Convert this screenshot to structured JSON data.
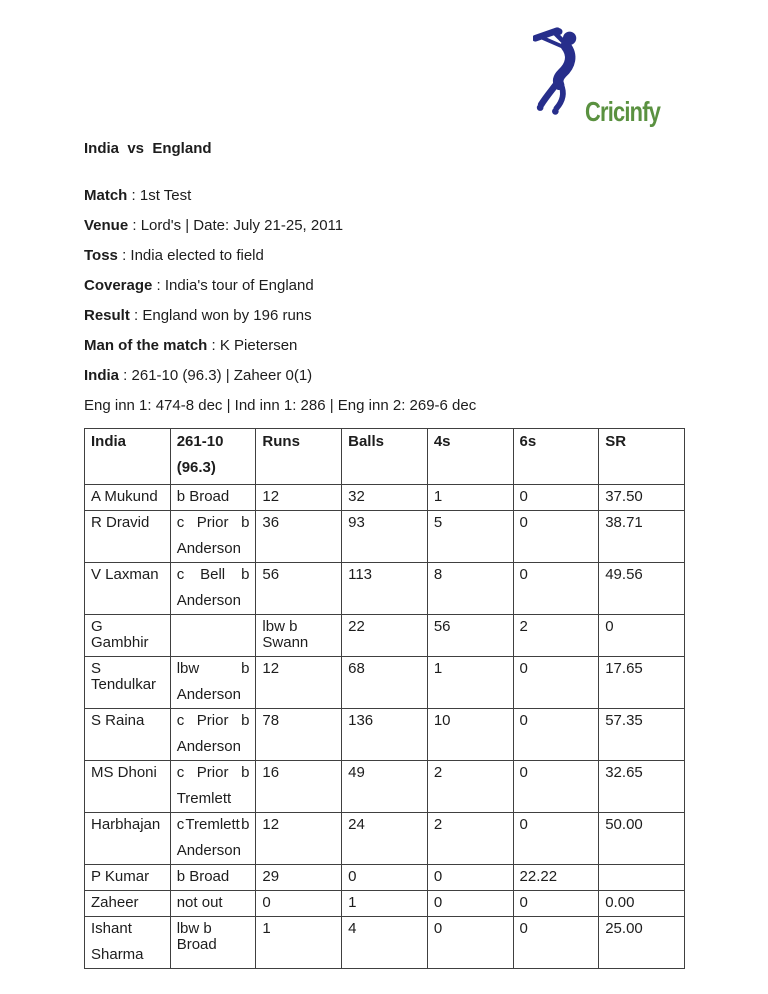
{
  "logo": {
    "text": "Cricinfy",
    "text_color": "#5a9140",
    "figure_color": "#272e8b",
    "figure": "batsman-silhouette"
  },
  "title": "India  vs  England",
  "match_info": [
    {
      "label": "Match",
      "value": " : 1st Test"
    },
    {
      "label": "Venue",
      "value": " : Lord's | Date: July 21-25, 2011"
    },
    {
      "label": "Toss",
      "value": " : India elected to field"
    },
    {
      "label": "Coverage",
      "value": " : India's tour of England"
    },
    {
      "label": "Result",
      "value": " : England won by 196 runs"
    },
    {
      "label": "Man of the match",
      "value": " : K Pietersen"
    },
    {
      "label": "India",
      "value": " : 261-10 (96.3) | Zaheer 0(1)"
    },
    {
      "label": "",
      "value": "Eng inn 1: 474-8 dec | Ind inn 1: 286 | Eng inn 2: 269-6 dec"
    }
  ],
  "scorecard": {
    "headers": [
      "India",
      "261-10\n(96.3)",
      "Runs",
      "Balls",
      "4s",
      "6s",
      "SR"
    ],
    "rows": [
      [
        "A Mukund",
        "b Broad",
        "12",
        "32",
        "1",
        "0",
        "37.50"
      ],
      [
        "R Dravid",
        "c Prior b\nAnderson",
        "36",
        "93",
        "5",
        "0",
        "38.71"
      ],
      [
        "V Laxman",
        "c Bell b\nAnderson",
        "56",
        "113",
        "8",
        "0",
        "49.56"
      ],
      [
        "G Gambhir",
        "",
        "lbw b Swann",
        "22",
        "56",
        "2",
        "0"
      ],
      [
        "S Tendulkar",
        "lbw b\nAnderson",
        "12",
        "68",
        "1",
        "0",
        "17.65"
      ],
      [
        "S Raina",
        "c Prior b\nAnderson",
        "78",
        "136",
        "10",
        "0",
        "57.35"
      ],
      [
        "MS Dhoni",
        "c Prior b\nTremlett",
        "16",
        "49",
        "2",
        "0",
        "32.65"
      ],
      [
        "Harbhajan",
        "c Tremlett b\nAnderson",
        "12",
        "24",
        "2",
        "0",
        "50.00"
      ],
      [
        "P Kumar",
        "b Broad",
        "29",
        "0",
        "0",
        "22.22",
        ""
      ],
      [
        "Zaheer",
        "not out",
        "0",
        "1",
        "0",
        "0",
        "0.00"
      ],
      [
        "Ishant\nSharma",
        "lbw b Broad",
        "1",
        "4",
        "0",
        "0",
        "25.00"
      ]
    ]
  }
}
